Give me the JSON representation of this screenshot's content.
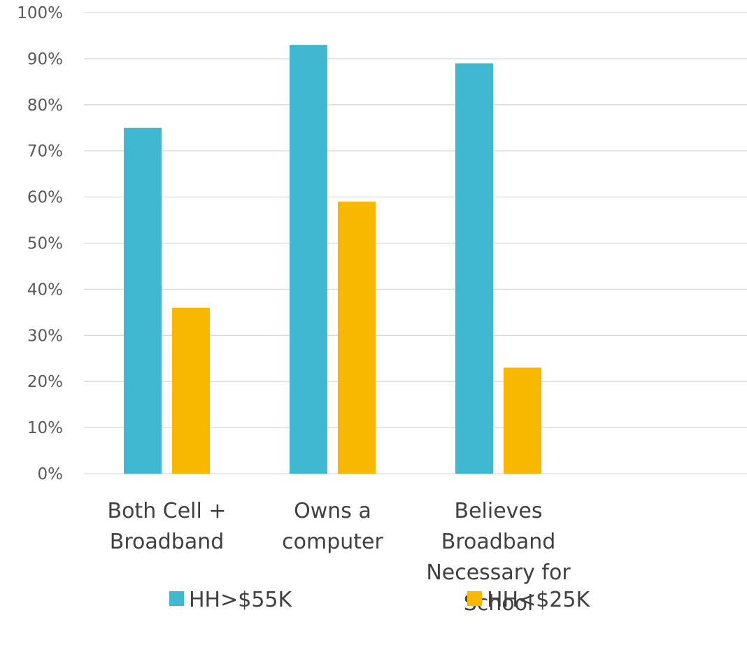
{
  "chart_data": {
    "type": "bar",
    "categories": [
      [
        "Both Cell +",
        "Broadband"
      ],
      [
        "Owns a",
        "computer"
      ],
      [
        "Believes",
        "Broadband",
        "Necessary for",
        "School"
      ],
      []
    ],
    "series": [
      {
        "name": "HH>$55K",
        "color": "#40B8D2",
        "values": [
          75,
          93,
          89,
          null
        ]
      },
      {
        "name": "HH<$25K",
        "color": "#F8B800",
        "values": [
          36,
          59,
          23,
          null
        ]
      }
    ],
    "y_ticks": [
      "0%",
      "10%",
      "20%",
      "30%",
      "40%",
      "50%",
      "60%",
      "70%",
      "80%",
      "90%",
      "100%"
    ],
    "ylim": [
      0,
      100
    ],
    "grid": true,
    "gridline_color": "#D9D9D9",
    "legend_position": "bottom"
  }
}
